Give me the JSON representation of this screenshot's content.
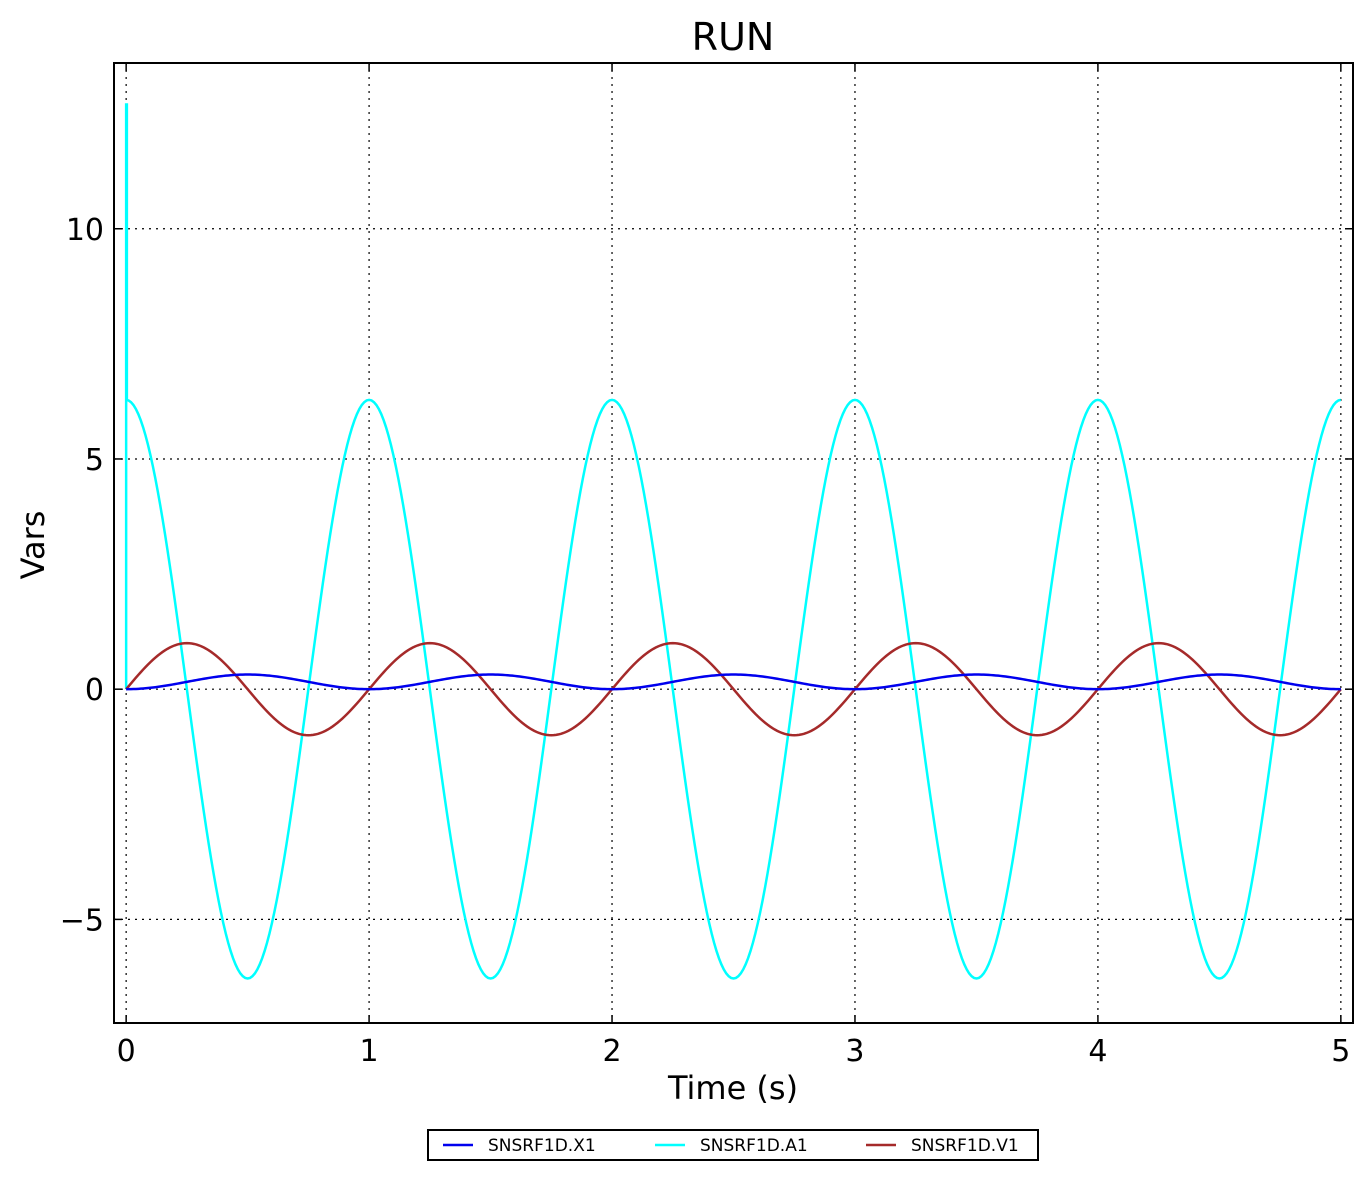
{
  "chart_data": {
    "type": "line",
    "title": "RUN",
    "xlabel": "Time (s)",
    "ylabel": "Vars",
    "xlim": [
      -0.05,
      5.05
    ],
    "ylim": [
      -7.25,
      13.6
    ],
    "xticks": [
      0,
      1,
      2,
      3,
      4,
      5
    ],
    "xtick_labels": [
      "0",
      "1",
      "2",
      "3",
      "4",
      "5"
    ],
    "yticks": [
      -5,
      0,
      5,
      10
    ],
    "ytick_labels": [
      "−5",
      "0",
      "5",
      "10"
    ],
    "grid": true,
    "legend_position": "bottom-center",
    "x": [
      0,
      0.0625,
      0.125,
      0.1875,
      0.25,
      0.3125,
      0.375,
      0.4375,
      0.5,
      0.5625,
      0.625,
      0.6875,
      0.75,
      0.8125,
      0.875,
      0.9375,
      1.0,
      1.0625,
      1.125,
      1.1875,
      1.25,
      1.3125,
      1.375,
      1.4375,
      1.5,
      1.5625,
      1.625,
      1.6875,
      1.75,
      1.8125,
      1.875,
      1.9375,
      2.0,
      2.0625,
      2.125,
      2.1875,
      2.25,
      2.3125,
      2.375,
      2.4375,
      2.5,
      2.5625,
      2.625,
      2.6875,
      2.75,
      2.8125,
      2.875,
      2.9375,
      3.0,
      3.0625,
      3.125,
      3.1875,
      3.25,
      3.3125,
      3.375,
      3.4375,
      3.5,
      3.5625,
      3.625,
      3.6875,
      3.75,
      3.8125,
      3.875,
      3.9375,
      4.0,
      4.0625,
      4.125,
      4.1875,
      4.25,
      4.3125,
      4.375,
      4.4375,
      4.5,
      4.5625,
      4.625,
      4.6875,
      4.75,
      4.8125,
      4.875,
      4.9375,
      5.0
    ],
    "series": [
      {
        "name": "SNSRF1D.X1",
        "color": "#0000ee",
        "values": [
          0,
          0.012,
          0.047,
          0.099,
          0.159,
          0.219,
          0.271,
          0.306,
          0.318,
          0.306,
          0.271,
          0.219,
          0.159,
          0.099,
          0.047,
          0.012,
          0,
          0.012,
          0.047,
          0.099,
          0.159,
          0.219,
          0.271,
          0.306,
          0.318,
          0.306,
          0.271,
          0.219,
          0.159,
          0.099,
          0.047,
          0.012,
          0,
          0.012,
          0.047,
          0.099,
          0.159,
          0.219,
          0.271,
          0.306,
          0.318,
          0.306,
          0.271,
          0.219,
          0.159,
          0.099,
          0.047,
          0.012,
          0,
          0.012,
          0.047,
          0.099,
          0.159,
          0.219,
          0.271,
          0.306,
          0.318,
          0.306,
          0.271,
          0.219,
          0.159,
          0.099,
          0.047,
          0.012,
          0,
          0.012,
          0.047,
          0.099,
          0.159,
          0.219,
          0.271,
          0.306,
          0.318,
          0.306,
          0.271,
          0.219,
          0.159,
          0.099,
          0.047,
          0.012,
          0
        ]
      },
      {
        "name": "SNSRF1D.A1",
        "color": "#00ffff",
        "values": [
          12.7,
          5.805,
          4.443,
          2.404,
          0,
          -2.404,
          -4.443,
          -5.805,
          -6.283,
          -5.805,
          -4.443,
          -2.404,
          0,
          2.404,
          4.443,
          5.805,
          6.283,
          5.805,
          4.443,
          2.404,
          0,
          -2.404,
          -4.443,
          -5.805,
          -6.283,
          -5.805,
          -4.443,
          -2.404,
          0,
          2.404,
          4.443,
          5.805,
          6.283,
          5.805,
          4.443,
          2.404,
          0,
          -2.404,
          -4.443,
          -5.805,
          -6.283,
          -5.805,
          -4.443,
          -2.404,
          0,
          2.404,
          4.443,
          5.805,
          6.283,
          5.805,
          4.443,
          2.404,
          0,
          -2.404,
          -4.443,
          -5.805,
          -6.283,
          -5.805,
          -4.443,
          -2.404,
          0,
          2.404,
          4.443,
          5.805,
          6.283,
          5.805,
          4.443,
          2.404,
          0,
          -2.404,
          -4.443,
          -5.805,
          -6.283,
          -5.805,
          -4.443,
          -2.404,
          0,
          2.404,
          4.443,
          5.805,
          6.283
        ]
      },
      {
        "name": "SNSRF1D.V1",
        "color": "#a52a2a",
        "values": [
          0,
          0.383,
          0.707,
          0.924,
          1.0,
          0.924,
          0.707,
          0.383,
          0,
          -0.383,
          -0.707,
          -0.924,
          -1.0,
          -0.924,
          -0.707,
          -0.383,
          0,
          0.383,
          0.707,
          0.924,
          1.0,
          0.924,
          0.707,
          0.383,
          0,
          -0.383,
          -0.707,
          -0.924,
          -1.0,
          -0.924,
          -0.707,
          -0.383,
          0,
          0.383,
          0.707,
          0.924,
          1.0,
          0.924,
          0.707,
          0.383,
          0,
          -0.383,
          -0.707,
          -0.924,
          -1.0,
          -0.924,
          -0.707,
          -0.383,
          0,
          0.383,
          0.707,
          0.924,
          1.0,
          0.924,
          0.707,
          0.383,
          0,
          -0.383,
          -0.707,
          -0.924,
          -1.0,
          -0.924,
          -0.707,
          -0.383,
          0,
          0.383,
          0.707,
          0.924,
          1.0,
          0.924,
          0.707,
          0.383,
          0,
          -0.383,
          -0.707,
          -0.924,
          -1.0,
          -0.924,
          -0.707,
          -0.383,
          0
        ]
      }
    ]
  }
}
